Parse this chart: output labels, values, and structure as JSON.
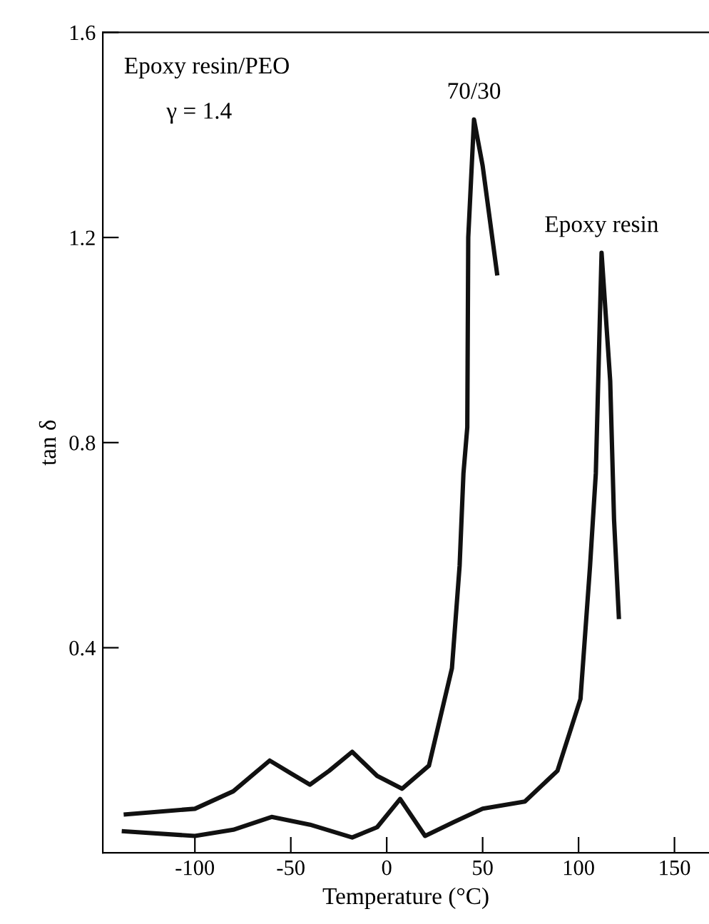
{
  "chart_data": {
    "type": "line",
    "xlabel": "Temperature (°C)",
    "ylabel": "tan δ",
    "annotations": [
      "Epoxy resin/PEO",
      "γ = 1.4"
    ],
    "xlim": [
      -148,
      168
    ],
    "ylim": [
      0,
      1.6
    ],
    "xticks": [
      -100,
      -50,
      0,
      50,
      100,
      150
    ],
    "yticks": [
      0.4,
      0.8,
      1.2,
      1.6
    ],
    "grid": false,
    "legend": false,
    "marker": "none",
    "line_style": "solid",
    "series": [
      {
        "name": "70/30",
        "color": "#111111",
        "x": [
          -136,
          -100,
          -80,
          -61,
          -50,
          -40,
          -30,
          -18,
          -5,
          8,
          22,
          34,
          38,
          40,
          42,
          42.5,
          45.5,
          50,
          57.5
        ],
        "values": [
          0.075,
          0.086,
          0.12,
          0.18,
          0.155,
          0.133,
          0.16,
          0.197,
          0.15,
          0.125,
          0.17,
          0.36,
          0.56,
          0.74,
          0.83,
          1.2,
          1.43,
          1.34,
          1.13
        ]
      },
      {
        "name": "Epoxy resin",
        "color": "#111111",
        "x": [
          -137,
          -100,
          -80,
          -60,
          -40,
          -18,
          -5,
          7,
          20,
          35,
          50,
          72,
          89,
          101,
          106,
          109,
          112,
          116.5,
          118.5,
          121
        ],
        "values": [
          0.042,
          0.033,
          0.045,
          0.07,
          0.055,
          0.03,
          0.05,
          0.105,
          0.033,
          0.06,
          0.086,
          0.1,
          0.16,
          0.3,
          0.56,
          0.74,
          1.17,
          0.92,
          0.65,
          0.46
        ]
      }
    ]
  }
}
